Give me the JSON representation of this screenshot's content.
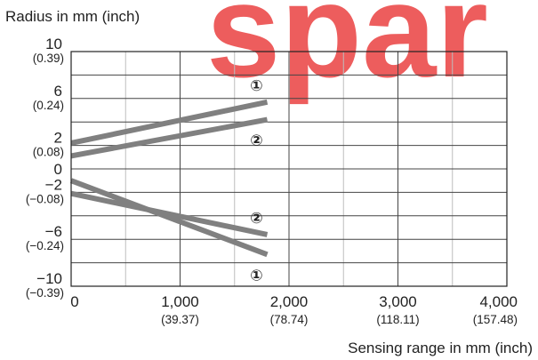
{
  "watermark": "spar",
  "colors": {
    "series": "#808080",
    "grid": "#bdbdbd",
    "frame": "#222222",
    "watermark": "#ec4c4c"
  },
  "chart_data": {
    "type": "line",
    "title": "",
    "ylabel": "Radius in mm (inch)",
    "xlabel": "Sensing range in mm (inch)",
    "xlim": [
      0,
      4000
    ],
    "ylim": [
      -10,
      10
    ],
    "grid": true,
    "x_ticks": [
      {
        "value": 0,
        "label": "0",
        "sub": ""
      },
      {
        "value": 1000,
        "label": "1,000",
        "sub": "(39.37)"
      },
      {
        "value": 2000,
        "label": "2,000",
        "sub": "(78.74)"
      },
      {
        "value": 3000,
        "label": "3,000",
        "sub": "(118.11)"
      },
      {
        "value": 4000,
        "label": "4,000",
        "sub": "(157.48)"
      }
    ],
    "y_ticks": [
      {
        "value": 10,
        "label": "10",
        "sub": "(0.39)"
      },
      {
        "value": 6,
        "label": "6",
        "sub": "(0.24)"
      },
      {
        "value": 2,
        "label": "2",
        "sub": "(0.08)"
      },
      {
        "value": 0,
        "label": "0",
        "sub": ""
      },
      {
        "value": -2,
        "label": "−2",
        "sub": "(−0.08)"
      },
      {
        "value": -6,
        "label": "−6",
        "sub": "(−0.24)"
      },
      {
        "value": -10,
        "label": "−10",
        "sub": "(−0.39)"
      }
    ],
    "series": [
      {
        "marker": "①",
        "x": [
          0,
          1800
        ],
        "y": [
          2.2,
          5.7
        ]
      },
      {
        "marker": "②",
        "x": [
          0,
          1800
        ],
        "y": [
          1.1,
          4.2
        ]
      },
      {
        "marker": "②",
        "x": [
          0,
          1800
        ],
        "y": [
          -2.1,
          -5.6
        ]
      },
      {
        "marker": "①",
        "x": [
          0,
          1800
        ],
        "y": [
          -1.0,
          -7.3
        ]
      }
    ]
  }
}
